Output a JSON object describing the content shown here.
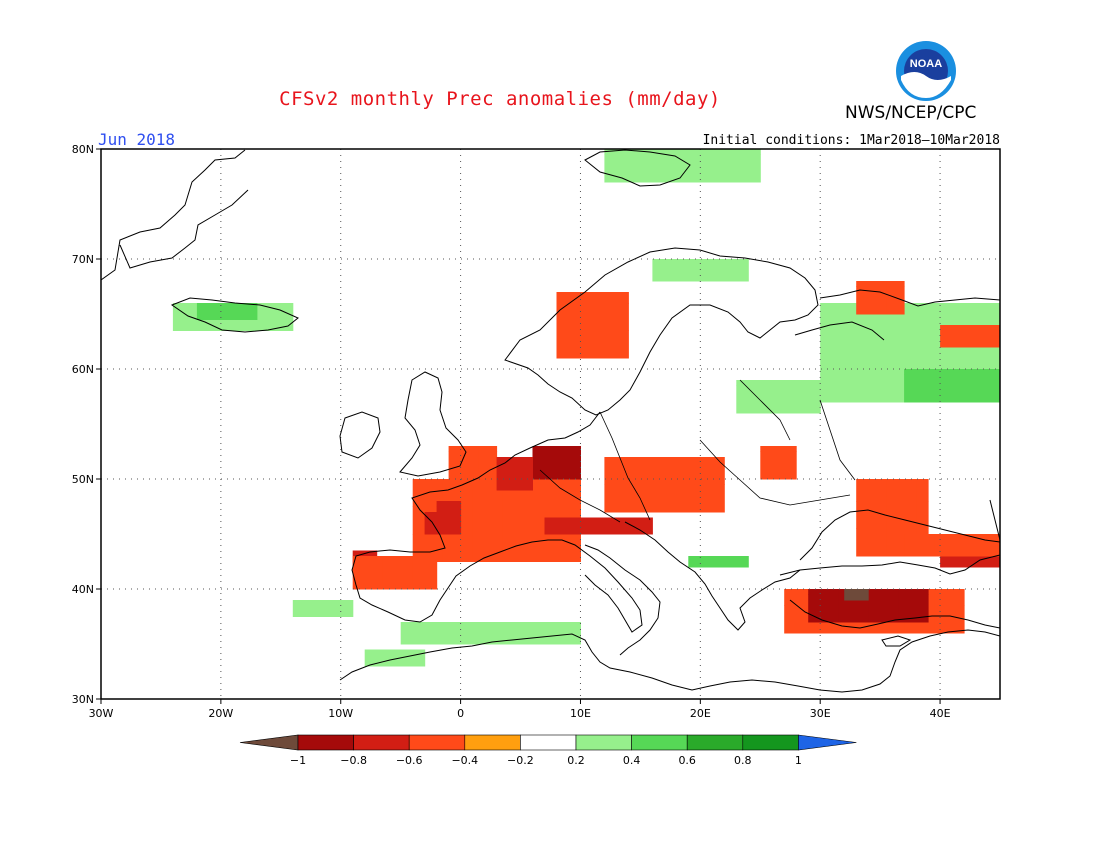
{
  "header": {
    "title": "CFSv2 monthly Prec anomalies (mm/day)",
    "agency": "NWS/NCEP/CPC",
    "month": "Jun 2018",
    "initial_conditions": "Initial conditions: 1Mar2018–10Mar2018",
    "logo_text": "NOAA"
  },
  "map": {
    "lon_labels": [
      "30W",
      "20W",
      "10W",
      "0",
      "10E",
      "20E",
      "30E",
      "40E"
    ],
    "lat_labels": [
      "80N",
      "70N",
      "60N",
      "50N",
      "40N",
      "30N"
    ],
    "lon_range": [
      -30,
      45
    ],
    "lat_range": [
      30,
      80
    ],
    "coastline_color": "#000000",
    "grid_style": "dotted"
  },
  "legend": {
    "tick_labels": [
      "−1",
      "−0.8",
      "−0.6",
      "−0.4",
      "−0.2",
      "0.2",
      "0.4",
      "0.6",
      "0.8",
      "1"
    ],
    "colors": [
      "#6e4a3a",
      "#a50a0a",
      "#d21e14",
      "#ff4a19",
      "#ff9f0f",
      "#ffffff",
      "#96f08c",
      "#56d856",
      "#2aaa2a",
      "#14961e",
      "#1e64e6"
    ]
  },
  "anomaly_regions": [
    {
      "name": "Iceland",
      "level": "+0.4"
    },
    {
      "name": "Svalbard",
      "level": "+0.4"
    },
    {
      "name": "Western Russia",
      "level": "+0.4"
    },
    {
      "name": "France",
      "level": "-0.4"
    },
    {
      "name": "Benelux and W Germany",
      "level": "-0.8"
    },
    {
      "name": "Northern Italy",
      "level": "-0.6"
    },
    {
      "name": "Northwest Iberia",
      "level": "-0.6"
    },
    {
      "name": "Turkey",
      "level": "-0.8"
    },
    {
      "name": "Central Anatolia",
      "level": "-1"
    },
    {
      "name": "North Africa",
      "level": "+0.4"
    }
  ]
}
